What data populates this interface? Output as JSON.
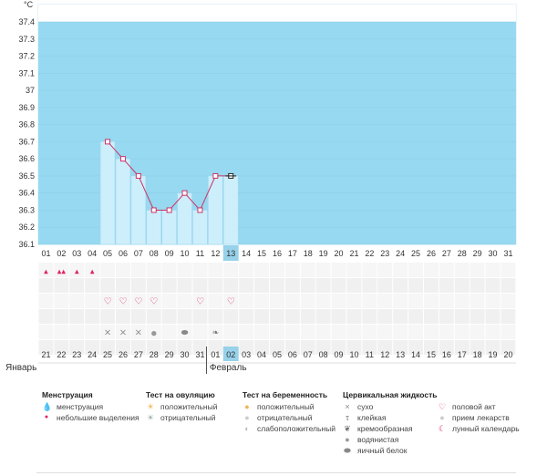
{
  "chart_data": {
    "type": "line",
    "ylabel": "°C",
    "ylim": [
      36.1,
      37.4
    ],
    "yticks": [
      "37.4",
      "37.3",
      "37.2",
      "37.1",
      "37",
      "36.9",
      "36.8",
      "36.7",
      "36.6",
      "36.5",
      "36.4",
      "36.3",
      "36.2",
      "36.1"
    ],
    "cycle_days": [
      "01",
      "02",
      "03",
      "04",
      "05",
      "06",
      "07",
      "08",
      "09",
      "10",
      "11",
      "12",
      "13",
      "14",
      "15",
      "16",
      "17",
      "18",
      "19",
      "20",
      "21",
      "22",
      "23",
      "24",
      "25",
      "26",
      "27",
      "28",
      "29",
      "30",
      "31"
    ],
    "current_day_index": 12,
    "series": [
      {
        "values": [
          null,
          null,
          null,
          null,
          36.7,
          36.6,
          36.5,
          36.3,
          36.3,
          36.4,
          36.3,
          36.5,
          36.5
        ]
      }
    ],
    "calendar_dates": [
      "21",
      "22",
      "23",
      "24",
      "25",
      "26",
      "27",
      "28",
      "29",
      "30",
      "31",
      "01",
      "02",
      "03",
      "04",
      "05",
      "06",
      "07",
      "08",
      "09",
      "10",
      "11",
      "12",
      "13",
      "14",
      "15",
      "16",
      "17",
      "18",
      "19",
      "20"
    ],
    "calendar_date_colors": [
      "normal",
      "normal",
      "normal",
      "normal",
      "normal",
      "red",
      "red",
      "normal",
      "normal",
      "normal",
      "normal",
      "normal",
      "today",
      "red",
      "normal",
      "normal",
      "normal",
      "normal",
      "normal",
      "red",
      "red",
      "normal",
      "normal",
      "normal",
      "normal",
      "normal",
      "red",
      "red",
      "normal",
      "normal",
      "normal"
    ],
    "months": [
      {
        "label": "Январь",
        "start_index": 0
      },
      {
        "label": "Февраль",
        "start_index": 11
      }
    ],
    "markers": {
      "menstruation": {
        "heavy": [
          1
        ],
        "light": [
          0,
          2,
          3
        ]
      },
      "intercourse": [
        4,
        5,
        6,
        7,
        10,
        12
      ],
      "fluid": {
        "dry": [
          4,
          5,
          6
        ],
        "watery": [
          7
        ],
        "egg_white": [
          9
        ],
        "creamy": [
          11
        ]
      }
    }
  },
  "colors": {
    "fill": "#97d9f0",
    "bar": "#cdeefb",
    "bar_edge": "#9fd8ef",
    "line": "#cc3366",
    "today": "#97d2ea",
    "cell": "#f3f3f3",
    "red": "#e0245e"
  },
  "legend": {
    "menstruation": {
      "title": "Менструация",
      "items": [
        {
          "icon": "drop-heavy",
          "label": "менструация"
        },
        {
          "icon": "drop-light",
          "label": "небольшие выделения"
        }
      ]
    },
    "ovulation": {
      "title": "Тест на овуляцию",
      "items": [
        {
          "icon": "sun-positive",
          "label": "положительный"
        },
        {
          "icon": "sun-negative",
          "label": "отрицательный"
        }
      ]
    },
    "pregnancy": {
      "title": "Тест на беременность",
      "items": [
        {
          "icon": "circle-positive",
          "label": "положительный"
        },
        {
          "icon": "circle-negative",
          "label": "отрицательный"
        },
        {
          "icon": "circle-weak",
          "label": "слабоположительный"
        }
      ]
    },
    "fluid": {
      "title": "Цервикальная жидкость",
      "items": [
        {
          "icon": "cross",
          "label": "сухо"
        },
        {
          "icon": "sticky",
          "label": "клейкая"
        },
        {
          "icon": "creamy",
          "label": "кремообразная"
        },
        {
          "icon": "drop-gray",
          "label": "водянистая"
        },
        {
          "icon": "egg",
          "label": "яичный белок"
        }
      ]
    },
    "other": {
      "items": [
        {
          "icon": "heart",
          "label": "половой акт"
        },
        {
          "icon": "pill",
          "label": "прием лекарств"
        },
        {
          "icon": "moon",
          "label": "лунный календарь"
        }
      ]
    }
  }
}
